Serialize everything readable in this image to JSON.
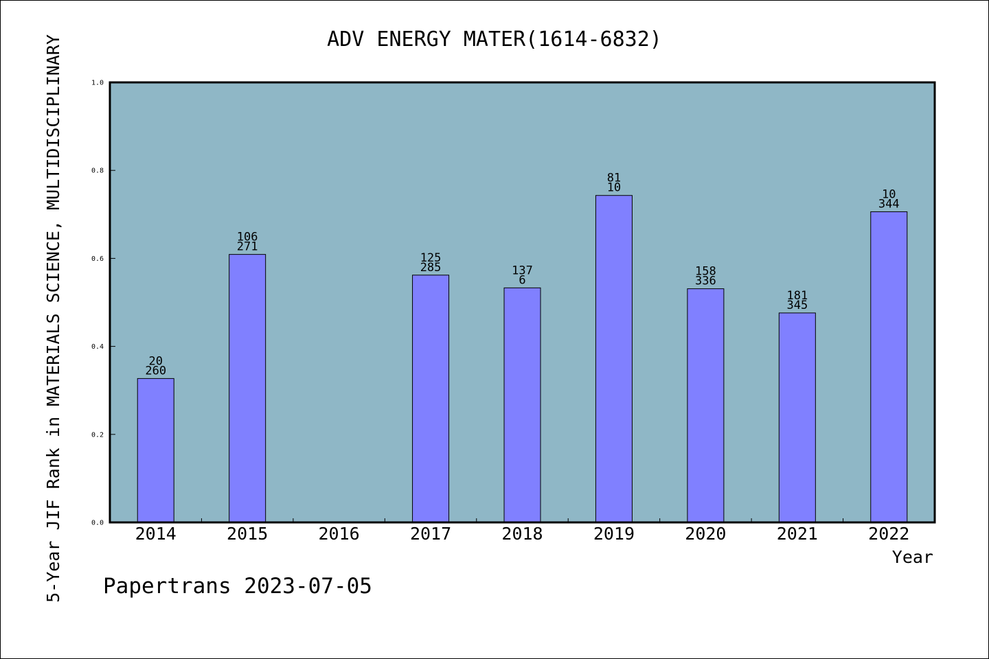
{
  "chart_data": {
    "type": "bar",
    "title": "ADV ENERGY MATER(1614-6832)",
    "xlabel": "Year",
    "ylabel": "5-Year JIF Rank in MATERIALS SCIENCE, MULTIDISCIPLINARY",
    "categories": [
      "2014",
      "2015",
      "2016",
      "2017",
      "2018",
      "2019",
      "2020",
      "2021",
      "2022"
    ],
    "values": [
      0.327,
      0.609,
      null,
      0.562,
      0.533,
      0.743,
      0.531,
      0.476,
      0.706
    ],
    "labels_top": [
      "20",
      "106",
      "",
      "125",
      "137",
      "81",
      "158",
      "181",
      "10"
    ],
    "labels_bottom": [
      "260",
      "271",
      "",
      "285",
      "6",
      "10",
      "336",
      "345",
      "344"
    ],
    "ylim": [
      0,
      1.0
    ],
    "yticks": [
      "0.0",
      "0.2",
      "0.4",
      "0.6",
      "0.8",
      "1.0"
    ],
    "grid": false,
    "colors": {
      "plot_background": "#8fb7c6",
      "bar": "#8080ff"
    }
  },
  "footer": {
    "watermark": "Papertrans 2023-07-05"
  }
}
